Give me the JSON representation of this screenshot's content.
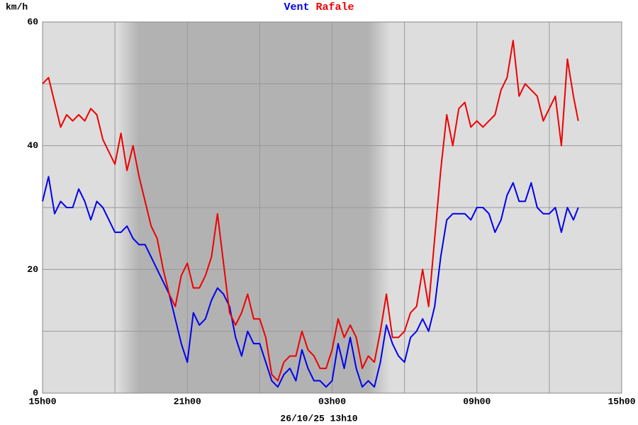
{
  "chart_data": {
    "type": "line",
    "y_label": "km/h",
    "date_label": "26/10/25 13h10",
    "x": [
      0,
      0.25,
      0.5,
      0.75,
      1,
      1.25,
      1.5,
      1.75,
      2,
      2.25,
      2.5,
      2.75,
      3,
      3.25,
      3.5,
      3.75,
      4,
      4.25,
      4.5,
      4.75,
      5,
      5.25,
      5.5,
      5.75,
      6,
      6.25,
      6.5,
      6.75,
      7,
      7.25,
      7.5,
      7.75,
      8,
      8.25,
      8.5,
      8.75,
      9,
      9.25,
      9.5,
      9.75,
      10,
      10.25,
      10.5,
      10.75,
      11,
      11.25,
      11.5,
      11.75,
      12,
      12.25,
      12.5,
      12.75,
      13,
      13.25,
      13.5,
      13.75,
      14,
      14.25,
      14.5,
      14.75,
      15,
      15.25,
      15.5,
      15.75,
      16,
      16.25,
      16.5,
      16.75,
      17,
      17.25,
      17.5,
      17.75,
      18,
      18.25,
      18.5,
      18.75,
      19,
      19.25,
      19.5,
      19.75,
      20,
      20.25,
      20.5,
      20.75,
      21,
      21.25,
      21.5,
      21.75,
      22,
      22.2
    ],
    "series": [
      {
        "name": "Vent",
        "color": "#0000ee",
        "values": [
          31,
          35,
          29,
          31,
          30,
          30,
          33,
          31,
          28,
          31,
          30,
          28,
          26,
          26,
          27,
          25,
          24,
          24,
          22,
          20,
          18,
          16,
          12,
          8,
          5,
          13,
          11,
          12,
          15,
          17,
          16,
          14,
          9,
          6,
          10,
          8,
          8,
          5,
          2,
          1,
          3,
          4,
          2,
          7,
          4,
          2,
          2,
          1,
          2,
          8,
          4,
          9,
          4,
          1,
          2,
          1,
          5,
          11,
          8,
          6,
          5,
          9,
          10,
          12,
          10,
          14,
          22,
          28,
          29,
          29,
          29,
          28,
          30,
          30,
          29,
          26,
          28,
          32,
          34,
          31,
          31,
          34,
          30,
          29,
          29,
          30,
          26,
          30,
          28,
          30
        ]
      },
      {
        "name": "Rafale",
        "color": "#ee0000",
        "values": [
          50,
          51,
          47,
          43,
          45,
          44,
          45,
          44,
          46,
          45,
          41,
          39,
          37,
          42,
          36,
          40,
          35,
          31,
          27,
          25,
          20,
          16,
          14,
          19,
          21,
          17,
          17,
          19,
          22,
          29,
          21,
          13,
          11,
          13,
          16,
          12,
          12,
          9,
          3,
          2,
          5,
          6,
          6,
          10,
          7,
          6,
          4,
          4,
          7,
          12,
          9,
          11,
          9,
          4,
          6,
          5,
          10,
          16,
          9,
          9,
          10,
          13,
          14,
          20,
          14,
          25,
          36,
          45,
          40,
          46,
          47,
          43,
          44,
          43,
          44,
          45,
          49,
          51,
          57,
          48,
          50,
          49,
          48,
          44,
          46,
          48,
          40,
          54,
          48,
          44
        ]
      }
    ],
    "xlim": [
      0,
      24
    ],
    "xticks": [
      {
        "value": 0,
        "label": "15h00"
      },
      {
        "value": 6,
        "label": "21h00"
      },
      {
        "value": 12,
        "label": "03h00"
      },
      {
        "value": 18,
        "label": "09h00"
      },
      {
        "value": 24,
        "label": "15h00"
      }
    ],
    "minor_xticks": [
      3,
      9,
      15,
      21
    ],
    "ylim": [
      0,
      60
    ],
    "yticks": [
      0,
      20,
      40,
      60
    ],
    "minor_yticks": [
      10,
      30,
      50
    ],
    "shaded_range": [
      3.1,
      14.4
    ],
    "grid": true
  }
}
